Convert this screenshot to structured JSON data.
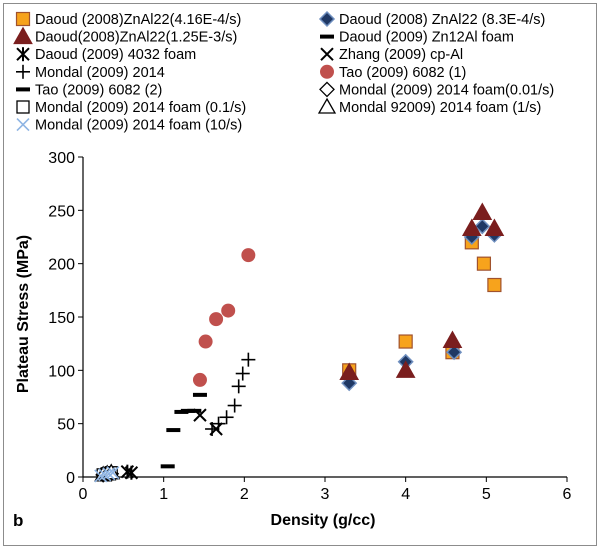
{
  "chart_data": {
    "type": "scatter",
    "panel_label": "b",
    "xlabel": "Density (g/cc)",
    "ylabel": "Plateau Stress (MPa)",
    "xlim": [
      0,
      6
    ],
    "ylim": [
      0,
      300
    ],
    "x_ticks": [
      0,
      1,
      2,
      3,
      4,
      5,
      6
    ],
    "y_ticks": [
      0,
      50,
      100,
      150,
      200,
      250,
      300
    ],
    "grid": false,
    "legend_position": "top",
    "series": [
      {
        "name": "Daoud (2008)ZnAl22(4.16E-4/s)",
        "marker": "square",
        "fill": "#f7a31c",
        "stroke": "#a0522d",
        "x": [
          3.3,
          4.0,
          4.58,
          4.82,
          4.97,
          5.1
        ],
        "y": [
          100,
          127,
          117,
          220,
          200,
          180
        ]
      },
      {
        "name": "Daoud (2008)  ZnAl22 (8.3E-4/s)",
        "marker": "diamond",
        "fill": "#1f3864",
        "stroke": "#6f8fbf",
        "x": [
          3.3,
          4.0,
          4.6,
          4.82,
          4.95,
          5.1
        ],
        "y": [
          88,
          108,
          117,
          225,
          235,
          227
        ]
      },
      {
        "name": "Daoud(2008)ZnAl22(1.25E-3/s)",
        "marker": "triangle",
        "fill": "#7a1e1e",
        "stroke": "#7a1e1e",
        "x": [
          3.3,
          4.0,
          4.58,
          4.82,
          4.95,
          5.1
        ],
        "y": [
          98,
          100,
          128,
          233,
          248,
          233
        ]
      },
      {
        "name": "Daoud (2009)  Zn12Al foam",
        "marker": "dash",
        "fill": "#000000",
        "stroke": "#000000",
        "x": [
          1.05
        ],
        "y": [
          10
        ]
      },
      {
        "name": "Daoud (2009)  4032 foam",
        "marker": "asterisk",
        "fill": "#000000",
        "stroke": "#000000",
        "x": [
          0.55,
          0.6
        ],
        "y": [
          5,
          4
        ]
      },
      {
        "name": "Zhang (2009)  cp-Al",
        "marker": "x",
        "fill": "#000000",
        "stroke": "#000000",
        "x": [
          1.45,
          1.65
        ],
        "y": [
          58,
          45
        ]
      },
      {
        "name": "Mondal (2009)  2014",
        "marker": "plus",
        "fill": "#000000",
        "stroke": "#000000",
        "x": [
          1.6,
          1.68,
          1.78,
          1.88,
          1.93,
          1.98,
          2.05
        ],
        "y": [
          45,
          50,
          56,
          67,
          85,
          97,
          110
        ]
      },
      {
        "name": "Tao (2009)  6082 (1)",
        "marker": "circle",
        "fill": "#c0504d",
        "stroke": "#c0504d",
        "x": [
          1.45,
          1.52,
          1.65,
          1.8,
          2.05
        ],
        "y": [
          91,
          127,
          148,
          156,
          208
        ]
      },
      {
        "name": "Tao (2009)  6082 (2)",
        "marker": "dash",
        "fill": "#000000",
        "stroke": "#000000",
        "x": [
          1.12,
          1.22,
          1.3,
          1.38,
          1.45
        ],
        "y": [
          44,
          61,
          62,
          62,
          77
        ]
      },
      {
        "name": "Mondal (2009)  2014 foam(0.01/s)",
        "marker": "open-diamond",
        "fill": "none",
        "stroke": "#000000",
        "x": [
          0.25,
          0.3,
          0.35
        ],
        "y": [
          2,
          3,
          3
        ]
      },
      {
        "name": "Mondal (2009)  2014 foam (0.1/s)",
        "marker": "open-square",
        "fill": "none",
        "stroke": "#000000",
        "x": [
          0.25,
          0.3,
          0.35
        ],
        "y": [
          2,
          3,
          4
        ]
      },
      {
        "name": "Mondal 92009)  2014 foam (1/s)",
        "marker": "open-triangle",
        "fill": "none",
        "stroke": "#000000",
        "x": [
          0.25,
          0.3,
          0.35
        ],
        "y": [
          2,
          3,
          4
        ]
      },
      {
        "name": "Mondal (2009)  2014 foam (10/s)",
        "marker": "light-x",
        "fill": "none",
        "stroke": "#8eb4e3",
        "x": [
          0.22,
          0.27,
          0.32,
          0.37
        ],
        "y": [
          1,
          2,
          3,
          4
        ]
      }
    ]
  }
}
